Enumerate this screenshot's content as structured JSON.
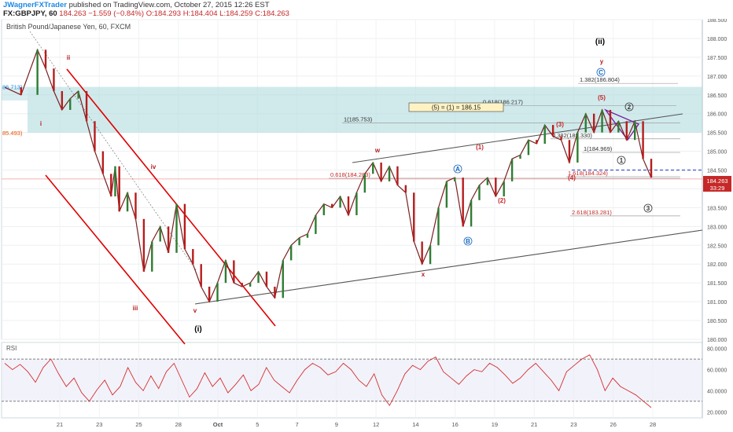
{
  "header": {
    "author": "JWagnerFXTrader",
    "published": "published on TradingView.com, October 27, 2015 12:26 EST",
    "symbol": "FX:GBPJPY, 60",
    "last": "184.263",
    "change": "−1.559 (−0.84%)",
    "ohlc": "O:184.293 H:184.404 L:184.259 C:184.263"
  },
  "chart_data": {
    "type": "line",
    "title": "British Pound/Japanese Yen, 60, FXCM",
    "price_axis": {
      "min": 180.0,
      "max": 188.5,
      "ticks": [
        "188.500",
        "188.000",
        "187.500",
        "187.000",
        "186.500",
        "186.000",
        "185.500",
        "185.000",
        "184.500",
        "184.000",
        "183.500",
        "183.000",
        "182.500",
        "182.000",
        "181.500",
        "181.000",
        "180.500",
        "180.000"
      ],
      "last_price": "184.263",
      "countdown": "33:29"
    },
    "time_axis": {
      "labels": [
        "21",
        "23",
        "25",
        "28",
        "Oct",
        "5",
        "7",
        "9",
        "12",
        "14",
        "16",
        "19",
        "21",
        "23",
        "26",
        "28"
      ]
    },
    "price_series": {
      "name": "GBPJPY",
      "points": [
        [
          0,
          186.7
        ],
        [
          4,
          186.5
        ],
        [
          8,
          187.7
        ],
        [
          10,
          187.2
        ],
        [
          12,
          186.6
        ],
        [
          14,
          186.1
        ],
        [
          16,
          186.4
        ],
        [
          18,
          186.6
        ],
        [
          20,
          185.8
        ],
        [
          22,
          185.0
        ],
        [
          24,
          184.4
        ],
        [
          26,
          183.8
        ],
        [
          27,
          184.6
        ],
        [
          28,
          183.4
        ],
        [
          30,
          183.9
        ],
        [
          32,
          183.2
        ],
        [
          34,
          181.8
        ],
        [
          36,
          182.6
        ],
        [
          38,
          183.0
        ],
        [
          40,
          182.3
        ],
        [
          42,
          183.6
        ],
        [
          44,
          182.4
        ],
        [
          46,
          182.0
        ],
        [
          48,
          181.4
        ],
        [
          50,
          181.0
        ],
        [
          52,
          181.5
        ],
        [
          54,
          182.1
        ],
        [
          56,
          181.5
        ],
        [
          58,
          181.4
        ],
        [
          60,
          181.5
        ],
        [
          62,
          181.8
        ],
        [
          64,
          181.4
        ],
        [
          66,
          181.1
        ],
        [
          68,
          182.1
        ],
        [
          70,
          182.5
        ],
        [
          72,
          182.7
        ],
        [
          74,
          182.8
        ],
        [
          76,
          183.3
        ],
        [
          78,
          183.6
        ],
        [
          80,
          183.5
        ],
        [
          82,
          183.8
        ],
        [
          84,
          183.3
        ],
        [
          86,
          183.9
        ],
        [
          88,
          184.4
        ],
        [
          90,
          184.7
        ],
        [
          92,
          184.2
        ],
        [
          94,
          184.6
        ],
        [
          96,
          184.1
        ],
        [
          98,
          183.9
        ],
        [
          100,
          182.6
        ],
        [
          102,
          182.0
        ],
        [
          104,
          182.5
        ],
        [
          106,
          183.5
        ],
        [
          108,
          184.2
        ],
        [
          110,
          184.3
        ],
        [
          112,
          183.0
        ],
        [
          114,
          183.7
        ],
        [
          116,
          184.1
        ],
        [
          118,
          184.3
        ],
        [
          120,
          183.8
        ],
        [
          122,
          184.2
        ],
        [
          124,
          184.8
        ],
        [
          126,
          184.9
        ],
        [
          128,
          185.3
        ],
        [
          130,
          185.2
        ],
        [
          132,
          185.7
        ],
        [
          134,
          185.4
        ],
        [
          136,
          185.3
        ],
        [
          138,
          184.7
        ],
        [
          140,
          185.5
        ],
        [
          142,
          186.0
        ],
        [
          144,
          185.5
        ],
        [
          146,
          186.1
        ],
        [
          148,
          185.5
        ],
        [
          150,
          185.8
        ],
        [
          152,
          185.3
        ],
        [
          154,
          185.8
        ],
        [
          156,
          184.8
        ],
        [
          158,
          184.3
        ]
      ]
    },
    "rsi": {
      "name": "RSI",
      "ticks": [
        "80.0000",
        "60.0000",
        "40.0000",
        "20.0000"
      ],
      "levels": [
        70,
        30
      ],
      "values": [
        66,
        60,
        65,
        58,
        48,
        62,
        70,
        56,
        44,
        52,
        38,
        30,
        41,
        50,
        36,
        44,
        62,
        48,
        40,
        54,
        42,
        58,
        66,
        50,
        34,
        42,
        57,
        44,
        52,
        38,
        46,
        55,
        40,
        46,
        62,
        50,
        44,
        38,
        50,
        60,
        66,
        62,
        55,
        58,
        66,
        60,
        50,
        44,
        56,
        36,
        26,
        40,
        56,
        64,
        60,
        68,
        72,
        58,
        52,
        46,
        54,
        60,
        58,
        66,
        62,
        55,
        47,
        52,
        60,
        66,
        58,
        50,
        40,
        58,
        64,
        70,
        74,
        60,
        40,
        52,
        44,
        40,
        36,
        30,
        24
      ]
    },
    "fib_levels": [
      {
        "label": "1.382(186.804)",
        "value": 186.804
      },
      {
        "label": "0.618(186.217)",
        "value": 186.217
      },
      {
        "label": "1(185.753)",
        "value": 185.753
      },
      {
        "label": "0.382(185.330)",
        "value": 185.33
      },
      {
        "label": "1(184.969)",
        "value": 184.969
      },
      {
        "label": "0.618(184.283)",
        "value": 184.283
      },
      {
        "label": "1.618(184.324)",
        "value": 184.324
      },
      {
        "label": "2.618(183.281)",
        "value": 183.281
      }
    ],
    "zone_labels": [
      {
        "label": "86.713)",
        "value": 186.713
      },
      {
        "label": "85.493)",
        "value": 185.493
      }
    ],
    "callout": "(5) = (1) = 186.15",
    "wave_labels": [
      {
        "text": "(ii)",
        "color": "#000000"
      },
      {
        "text": "y",
        "color": "#b71c1c"
      },
      {
        "text": "C",
        "color": "#1565c0"
      },
      {
        "text": "ii",
        "color": "#b71c1c"
      },
      {
        "text": "i",
        "color": "#b71c1c"
      },
      {
        "text": "iv",
        "color": "#b71c1c"
      },
      {
        "text": "iii",
        "color": "#b71c1c"
      },
      {
        "text": "v",
        "color": "#b71c1c"
      },
      {
        "text": "(i)",
        "color": "#000000"
      },
      {
        "text": "w",
        "color": "#b71c1c"
      },
      {
        "text": "x",
        "color": "#b71c1c"
      },
      {
        "text": "A",
        "color": "#1565c0"
      },
      {
        "text": "B",
        "color": "#1565c0"
      },
      {
        "text": "(1)",
        "color": "#c62828"
      },
      {
        "text": "(2)",
        "color": "#c62828"
      },
      {
        "text": "(3)",
        "color": "#c62828"
      },
      {
        "text": "(4)",
        "color": "#c62828"
      },
      {
        "text": "(5)",
        "color": "#c62828"
      },
      {
        "text": "1",
        "color": "#333333"
      },
      {
        "text": "2",
        "color": "#333333"
      },
      {
        "text": "3",
        "color": "#333333"
      }
    ],
    "colors": {
      "price_line": "#7a1f1f",
      "zone": "#a9d8dc",
      "channel": "#e00000",
      "rsi_line": "#d32f2f",
      "fib": "#7cb342",
      "dashed": "#1a3cc0",
      "last_label": "#c62828"
    }
  }
}
